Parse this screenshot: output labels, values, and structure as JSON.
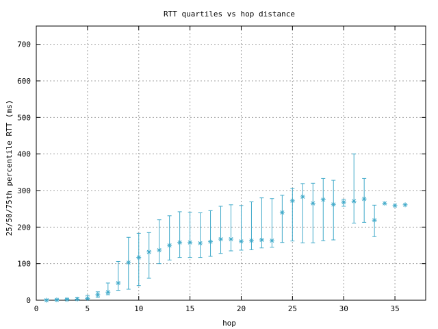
{
  "chart_data": {
    "type": "scatter",
    "title": "RTT quartiles vs hop distance",
    "xlabel": "hop",
    "ylabel": "25/50/75th percentile RTT (ms)",
    "xlim": [
      0,
      38
    ],
    "ylim": [
      0,
      750
    ],
    "xticks": [
      0,
      5,
      10,
      15,
      20,
      25,
      30,
      35
    ],
    "yticks": [
      0,
      100,
      200,
      300,
      400,
      500,
      600,
      700
    ],
    "grid": true,
    "legend": "none",
    "color": "#3fa9c9",
    "marker": "asterisk",
    "series": [
      {
        "hop": [
          1,
          2,
          3,
          4,
          5,
          6,
          7,
          8,
          9,
          10,
          11,
          12,
          13,
          14,
          15,
          16,
          17,
          18,
          19,
          20,
          21,
          22,
          23,
          24,
          25,
          26,
          27,
          28,
          29,
          30,
          31,
          32,
          33,
          34,
          35,
          36
        ],
        "median": [
          0,
          1,
          2,
          3,
          5,
          15,
          22,
          47,
          103,
          117,
          132,
          137,
          150,
          158,
          158,
          156,
          160,
          167,
          167,
          161,
          163,
          165,
          163,
          240,
          272,
          283,
          265,
          275,
          262,
          268,
          271,
          277,
          219,
          265,
          259,
          261
        ],
        "q25": [
          0,
          0,
          1,
          2,
          2,
          8,
          15,
          27,
          30,
          40,
          60,
          100,
          110,
          117,
          117,
          117,
          120,
          128,
          135,
          137,
          138,
          143,
          145,
          158,
          162,
          157,
          157,
          163,
          165,
          257,
          211,
          213,
          174,
          265,
          259,
          261
        ],
        "q75": [
          2,
          3,
          4,
          7,
          13,
          23,
          47,
          106,
          172,
          183,
          185,
          220,
          231,
          242,
          241,
          239,
          245,
          257,
          261,
          259,
          269,
          280,
          278,
          287,
          306,
          319,
          320,
          333,
          328,
          276,
          400,
          333,
          260,
          265,
          259,
          261
        ]
      }
    ]
  }
}
